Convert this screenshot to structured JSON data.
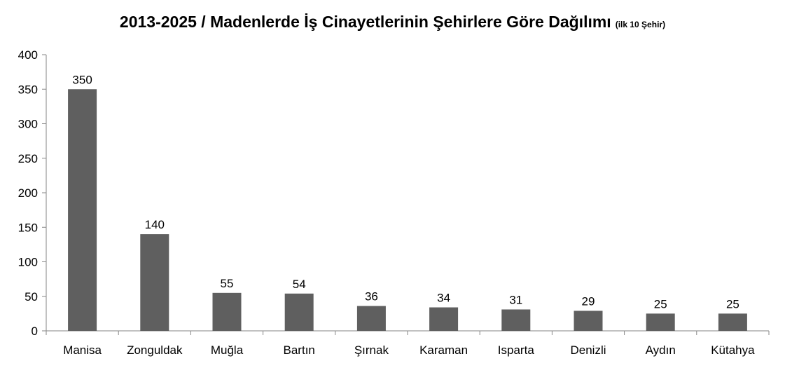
{
  "chart_data": {
    "type": "bar",
    "title": "2013-2025 / Madenlerde İş Cinayetlerinin Şehirlere Göre Dağılımı",
    "subtitle": "(ilk 10 Şehir)",
    "categories": [
      "Manisa",
      "Zonguldak",
      "Muğla",
      "Bartın",
      "Şırnak",
      "Karaman",
      "Isparta",
      "Denizli",
      "Aydın",
      "Kütahya"
    ],
    "values": [
      350,
      140,
      55,
      54,
      36,
      34,
      31,
      29,
      25,
      25
    ],
    "ylim": [
      0,
      400
    ],
    "yticks": [
      0,
      50,
      100,
      150,
      200,
      250,
      300,
      350,
      400
    ],
    "xlabel": "",
    "ylabel": "",
    "grid": false,
    "legend": "none",
    "bar_color": "#5f5f5f",
    "axis_color": "#868686"
  }
}
